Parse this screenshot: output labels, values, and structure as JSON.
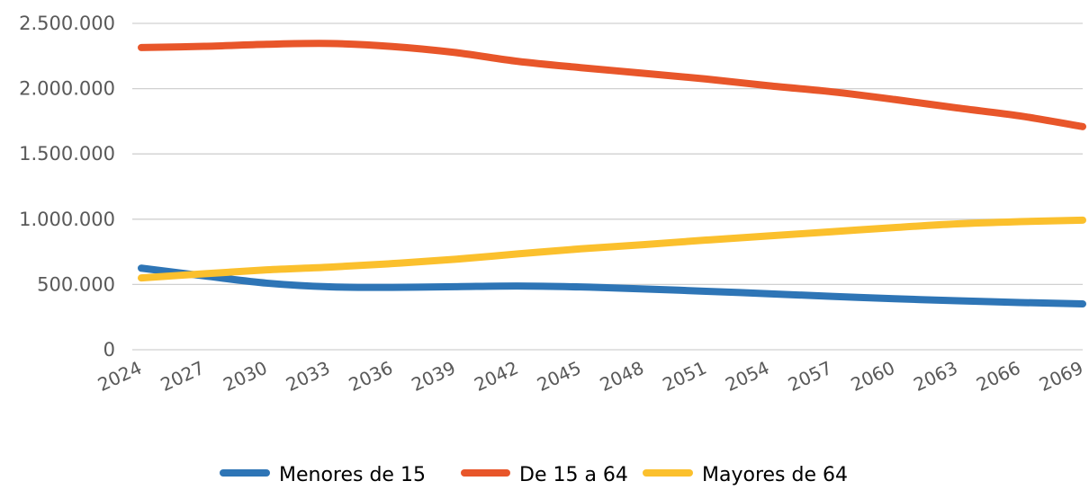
{
  "chart_data": {
    "type": "line",
    "title": "",
    "xlabel": "",
    "ylabel": "",
    "x": [
      "2024",
      "2027",
      "2030",
      "2033",
      "2036",
      "2039",
      "2042",
      "2045",
      "2048",
      "2051",
      "2054",
      "2057",
      "2060",
      "2063",
      "2066",
      "2069"
    ],
    "ylim": [
      0,
      2500000
    ],
    "y_ticks": [
      {
        "value": 0,
        "label": "0"
      },
      {
        "value": 500000,
        "label": "500.000"
      },
      {
        "value": 1000000,
        "label": "1.000.000"
      },
      {
        "value": 1500000,
        "label": "1.500.000"
      },
      {
        "value": 2000000,
        "label": "2.000.000"
      },
      {
        "value": 2500000,
        "label": "2.500.000"
      }
    ],
    "grid": true,
    "legend_position": "bottom",
    "series": [
      {
        "name": "Menores de 15",
        "color": "#2E75B6",
        "values": [
          625000,
          566000,
          510000,
          482000,
          478000,
          483000,
          488000,
          481000,
          466000,
          448000,
          429000,
          409000,
          391000,
          375000,
          362000,
          351000
        ]
      },
      {
        "name": "De 15 a 64",
        "color": "#E8562A",
        "values": [
          2315000,
          2324000,
          2340000,
          2346000,
          2323000,
          2277000,
          2209000,
          2161000,
          2118000,
          2074000,
          2022000,
          1976000,
          1917000,
          1852000,
          1791000,
          1709000
        ]
      },
      {
        "name": "Mayores de 64",
        "color": "#FBC02D",
        "values": [
          550000,
          582000,
          612000,
          633000,
          660000,
          693000,
          734000,
          773000,
          805000,
          840000,
          872000,
          904000,
          936000,
          964000,
          981000,
          993000
        ]
      }
    ]
  }
}
